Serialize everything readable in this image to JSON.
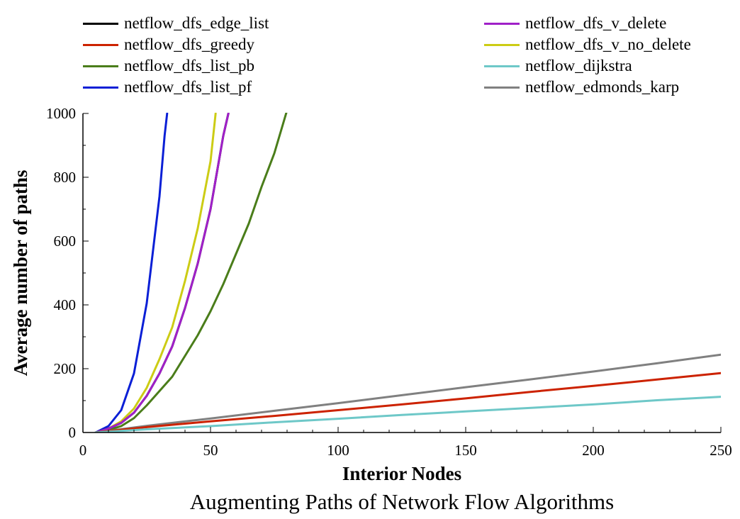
{
  "chart_data": {
    "type": "line",
    "title": "Augmenting Paths of Network Flow Algorithms",
    "xlabel": "Interior Nodes",
    "ylabel": "Average number of paths",
    "xlim": [
      0,
      250
    ],
    "ylim": [
      0,
      1000
    ],
    "x_ticks": [
      "0",
      "50",
      "100",
      "150",
      "200",
      "250"
    ],
    "y_ticks": [
      "0",
      "200",
      "400",
      "600",
      "800",
      "1000"
    ],
    "grid": false,
    "legend_position": "top",
    "series": [
      {
        "name": "netflow_dfs_edge_list",
        "color": "#000000",
        "x": [
          5,
          10,
          15,
          20,
          25,
          30,
          35,
          40,
          45,
          50,
          55,
          57
        ],
        "y": [
          0,
          12,
          30,
          62,
          115,
          185,
          270,
          390,
          530,
          700,
          930,
          1000
        ]
      },
      {
        "name": "netflow_dfs_greedy",
        "color": "#cc2200",
        "x": [
          5,
          25,
          50,
          75,
          100,
          125,
          150,
          175,
          200,
          225,
          250
        ],
        "y": [
          0,
          17,
          35,
          52,
          70,
          88,
          107,
          127,
          146,
          166,
          186
        ]
      },
      {
        "name": "netflow_dfs_list_pb",
        "color": "#4a7d1a",
        "x": [
          5,
          10,
          15,
          20,
          25,
          30,
          35,
          40,
          45,
          50,
          55,
          60,
          65,
          70,
          75,
          80
        ],
        "y": [
          0,
          8,
          20,
          45,
          85,
          130,
          175,
          240,
          305,
          380,
          465,
          560,
          655,
          770,
          875,
          1010
        ]
      },
      {
        "name": "netflow_dfs_list_pf",
        "color": "#0a1fd6",
        "x": [
          5,
          10,
          15,
          20,
          25,
          30,
          32,
          33
        ],
        "y": [
          0,
          20,
          70,
          185,
          405,
          740,
          930,
          1000
        ]
      },
      {
        "name": "netflow_dfs_v_delete",
        "color": "#a020c8",
        "x": [
          5,
          10,
          15,
          20,
          25,
          30,
          35,
          40,
          45,
          50,
          55,
          57
        ],
        "y": [
          0,
          12,
          30,
          62,
          115,
          185,
          270,
          390,
          530,
          700,
          930,
          1000
        ]
      },
      {
        "name": "netflow_dfs_v_no_delete",
        "color": "#cccc14",
        "x": [
          5,
          10,
          15,
          20,
          25,
          30,
          35,
          40,
          45,
          50,
          52
        ],
        "y": [
          0,
          12,
          35,
          75,
          140,
          230,
          330,
          475,
          640,
          850,
          1000
        ]
      },
      {
        "name": "netflow_dijkstra",
        "color": "#6ec8c8",
        "x": [
          5,
          25,
          50,
          75,
          100,
          125,
          150,
          175,
          200,
          225,
          250
        ],
        "y": [
          0,
          10,
          20,
          32,
          43,
          55,
          66,
          77,
          88,
          101,
          112
        ]
      },
      {
        "name": "netflow_edmonds_karp",
        "color": "#808080",
        "x": [
          5,
          25,
          50,
          75,
          100,
          125,
          150,
          175,
          200,
          225,
          250
        ],
        "y": [
          0,
          21,
          44,
          68,
          92,
          117,
          142,
          166,
          191,
          217,
          244
        ]
      }
    ]
  }
}
